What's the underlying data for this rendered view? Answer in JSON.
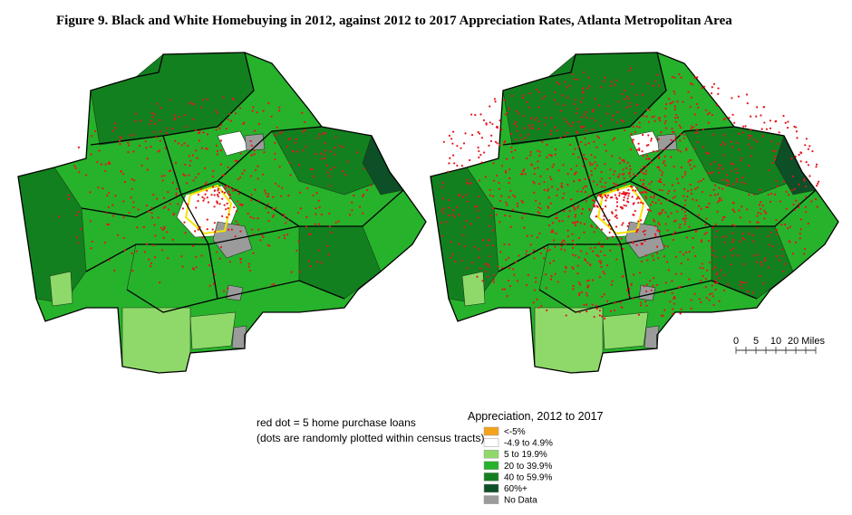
{
  "header": {
    "title": "Figure 9. Black and White Homebuying in 2012, against 2012 to 2017 Appreciation Rates, Atlanta Metropolitan Area"
  },
  "scale_bar": {
    "labels": [
      "0",
      "5",
      "10",
      "20 Miles"
    ]
  },
  "notes": [
    "red dot = 5 home purchase loans",
    "(dots are randomly plotted within census tracts)"
  ],
  "legend": {
    "title": "Appreciation, 2012 to 2017",
    "items": [
      {
        "label": "<-5%",
        "color": "#f5a21b"
      },
      {
        "label": "-4.9 to 4.9%",
        "color": "#ffffff"
      },
      {
        "label": "5 to 19.9%",
        "color": "#8fd96a"
      },
      {
        "label": "20 to 39.9%",
        "color": "#27b22b"
      },
      {
        "label": "40 to 59.9%",
        "color": "#13801f"
      },
      {
        "label": "60%+",
        "color": "#0d4f26"
      },
      {
        "label": "No Data",
        "color": "#9b9b9b"
      }
    ]
  }
}
